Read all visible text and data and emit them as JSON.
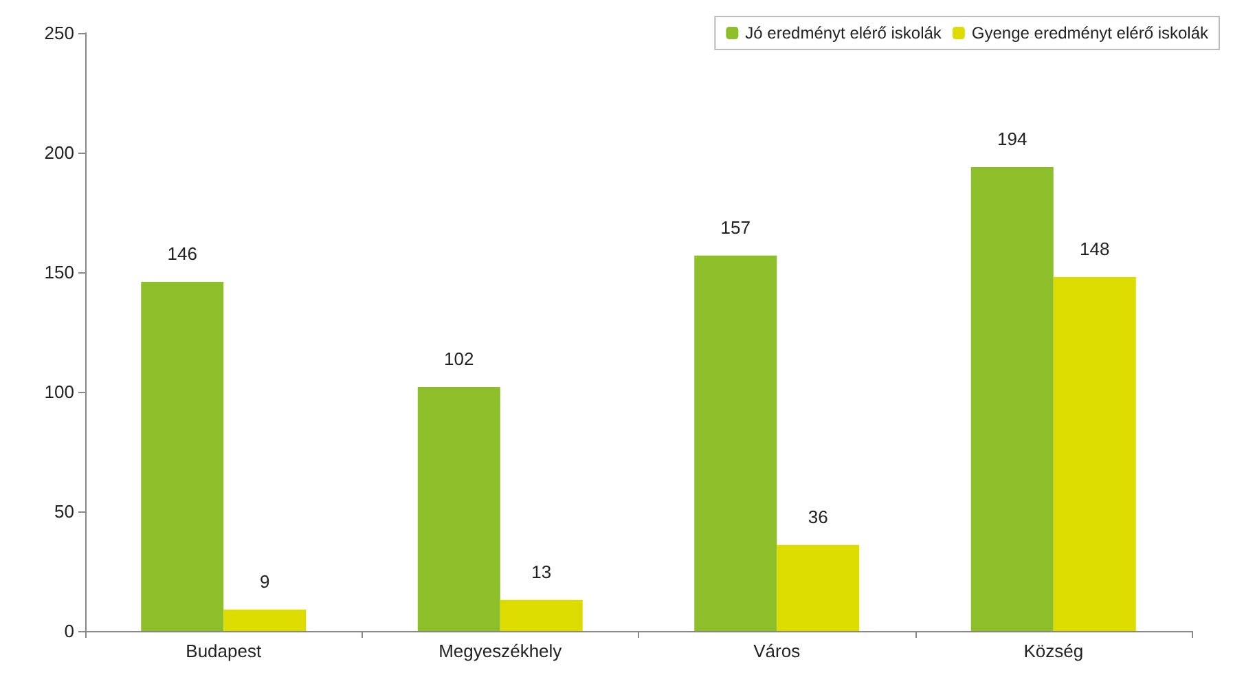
{
  "chart_data": {
    "type": "bar",
    "categories": [
      "Budapest",
      "Megyeszékhely",
      "Város",
      "Község"
    ],
    "series": [
      {
        "name": "Jó eredményt elérő iskolák",
        "color": "#8dbf2a",
        "values": [
          146,
          102,
          157,
          194
        ]
      },
      {
        "name": "Gyenge eredményt elérő iskolák",
        "color": "#dcdc00",
        "values": [
          9,
          13,
          36,
          148
        ]
      }
    ],
    "ylim": [
      0,
      250
    ],
    "yticks": [
      0,
      50,
      100,
      150,
      200,
      250
    ],
    "grid": false,
    "legend": "top right",
    "data_labels": true
  }
}
